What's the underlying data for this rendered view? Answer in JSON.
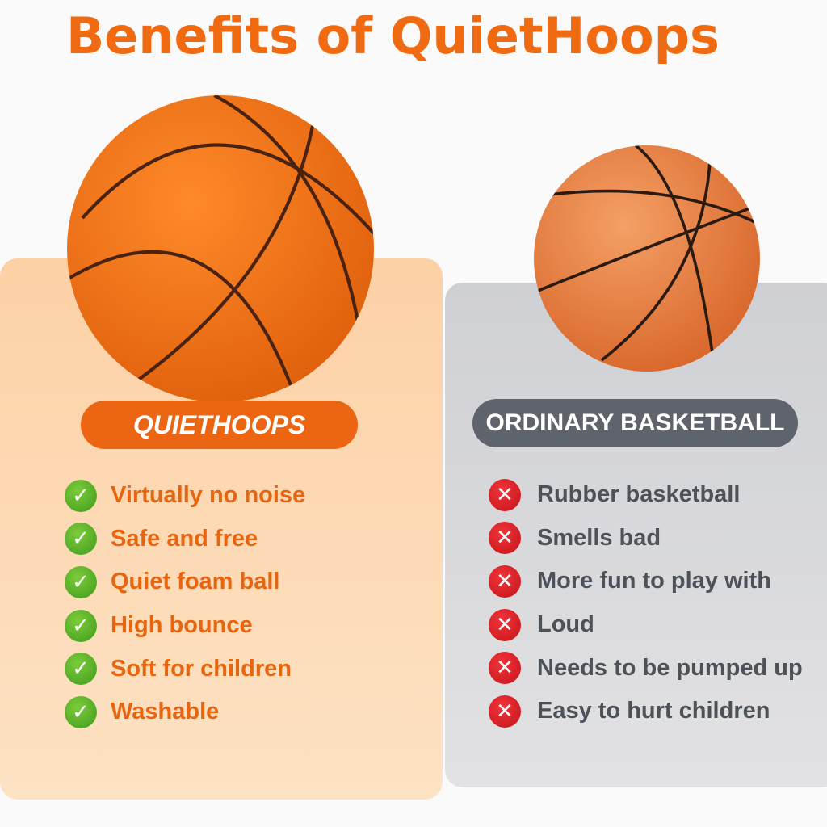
{
  "title": "Benefits of QuietHoops",
  "colors": {
    "accent": "#f06a12",
    "left_badge": "#ec6512",
    "right_badge": "#5f636b",
    "check": "#4caf20",
    "cross": "#d91c22"
  },
  "left": {
    "label": "QUIETHOOPS",
    "icon": "check-icon",
    "items": [
      "Virtually no noise",
      "Safe and free",
      "Quiet foam ball",
      "High bounce",
      "Soft for children",
      "Washable"
    ]
  },
  "right": {
    "label": "ORDINARY BASKETBALL",
    "icon": "cross-icon",
    "items": [
      "Rubber basketball",
      "Smells bad",
      "More fun to play with",
      "Loud",
      "Needs to be pumped up",
      "Easy to hurt children"
    ]
  }
}
